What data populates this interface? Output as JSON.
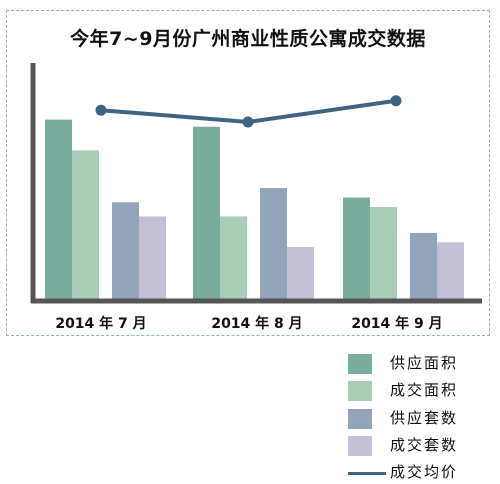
{
  "chart_data": {
    "type": "bar",
    "title": "今年7~9月份广州商业性质公寓成交数据",
    "categories": [
      "2014 年 7 月",
      "2014 年 8 月",
      "2014 年 9 月"
    ],
    "ylim": [
      0,
      100
    ],
    "line_ylim": [
      0,
      100
    ],
    "grid": false,
    "legend_position": "bottom-right",
    "series": [
      {
        "name": "供应面积",
        "type": "bar",
        "color": "#79ac9c",
        "values": [
          76,
          73,
          43
        ]
      },
      {
        "name": "成交面积",
        "type": "bar",
        "color": "#a9cdb6",
        "values": [
          63,
          35,
          39
        ]
      },
      {
        "name": "供应套数",
        "type": "bar",
        "color": "#93a3ba",
        "values": [
          41,
          47,
          28
        ]
      },
      {
        "name": "成交套数",
        "type": "bar",
        "color": "#c3c0d5",
        "values": [
          35,
          22,
          24
        ]
      },
      {
        "name": "成交均价",
        "type": "line",
        "color": "#3e6484",
        "values": [
          80,
          75,
          84
        ]
      }
    ]
  }
}
